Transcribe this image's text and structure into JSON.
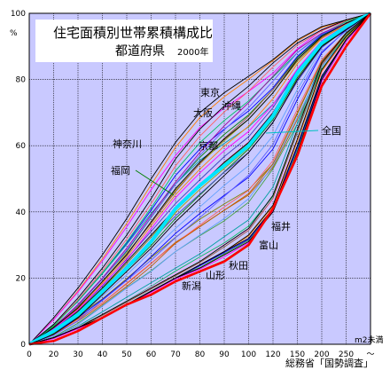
{
  "chart_data": {
    "type": "line",
    "title": "住宅面積別世帯累積構成比",
    "subtitle": "都道府県",
    "year_label": "2000年",
    "y_unit": "%",
    "x_unit": "m2未満",
    "source": "総務省「国勢調査」",
    "x_tick_labels": [
      "0",
      "20",
      "30",
      "40",
      "50",
      "60",
      "70",
      "80",
      "90",
      "100",
      "120",
      "150",
      "200",
      "250",
      "〜"
    ],
    "y_ticks": [
      0,
      20,
      40,
      60,
      80,
      100
    ],
    "ylim": [
      0,
      100
    ],
    "grid": true,
    "series": [
      {
        "name": "東京",
        "color": "#000000",
        "values": [
          0,
          8,
          17,
          27,
          38,
          50,
          61,
          70,
          76,
          81,
          86,
          92,
          96,
          98,
          100
        ]
      },
      {
        "name": "大阪",
        "color": "#000000",
        "values": [
          0,
          6,
          14,
          23,
          33,
          44,
          56,
          65,
          72,
          78,
          85,
          91,
          95,
          98,
          100
        ]
      },
      {
        "name": "沖縄",
        "color": "#a000a0",
        "values": [
          0,
          5,
          12,
          20,
          29,
          39,
          49,
          58,
          66,
          73,
          81,
          89,
          94,
          97,
          100
        ]
      },
      {
        "name": "神奈川",
        "color": "#000000",
        "values": [
          0,
          5,
          11,
          19,
          27,
          37,
          47,
          55,
          62,
          68,
          76,
          86,
          93,
          97,
          100
        ]
      },
      {
        "name": "京都",
        "color": "#000000",
        "values": [
          0,
          4,
          10,
          17,
          25,
          33,
          41,
          48,
          55,
          61,
          70,
          82,
          91,
          96,
          100
        ]
      },
      {
        "name": "全国",
        "color": "#00e5ff",
        "values": [
          0,
          4,
          9,
          16,
          23,
          31,
          41,
          48,
          54,
          60,
          69,
          82,
          91,
          96,
          100
        ]
      },
      {
        "name": "福岡",
        "color": "#000000",
        "values": [
          0,
          3,
          8,
          15,
          22,
          29,
          37,
          44,
          51,
          58,
          67,
          80,
          90,
          95,
          100
        ]
      },
      {
        "name": "福井",
        "color": "#000000",
        "values": [
          0,
          2,
          5,
          9,
          13,
          17,
          21,
          25,
          30,
          35,
          45,
          65,
          85,
          94,
          100
        ]
      },
      {
        "name": "富山",
        "color": "#000000",
        "values": [
          0,
          2,
          5,
          8,
          12,
          16,
          20,
          24,
          28,
          33,
          42,
          62,
          83,
          93,
          100
        ]
      },
      {
        "name": "秋田",
        "color": "#000000",
        "values": [
          0,
          2,
          5,
          8,
          12,
          16,
          20,
          24,
          28,
          32,
          41,
          60,
          81,
          92,
          100
        ]
      },
      {
        "name": "山形",
        "color": "#000000",
        "values": [
          0,
          2,
          5,
          8,
          12,
          16,
          20,
          23,
          27,
          31,
          40,
          58,
          80,
          92,
          100
        ]
      },
      {
        "name": "新潟",
        "color": "#ff0000",
        "values": [
          0,
          1,
          4,
          8,
          12,
          15,
          19,
          22,
          25,
          30,
          41,
          57,
          78,
          90,
          100
        ]
      }
    ],
    "annotations": [
      "東京",
      "大阪",
      "沖縄",
      "神奈川",
      "京都",
      "全国",
      "福岡",
      "福井",
      "富山",
      "秋田",
      "山形",
      "新潟"
    ]
  }
}
